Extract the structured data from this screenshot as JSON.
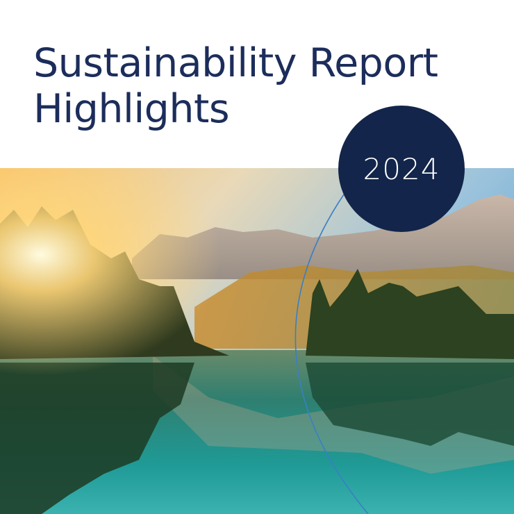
{
  "cover": {
    "title_line1": "Sustainability Report",
    "title_line2": "Highlights",
    "year": "2024"
  },
  "colors": {
    "title": "#1c2d5b",
    "badge": "#13254a",
    "arc": "#3a7fc4"
  }
}
